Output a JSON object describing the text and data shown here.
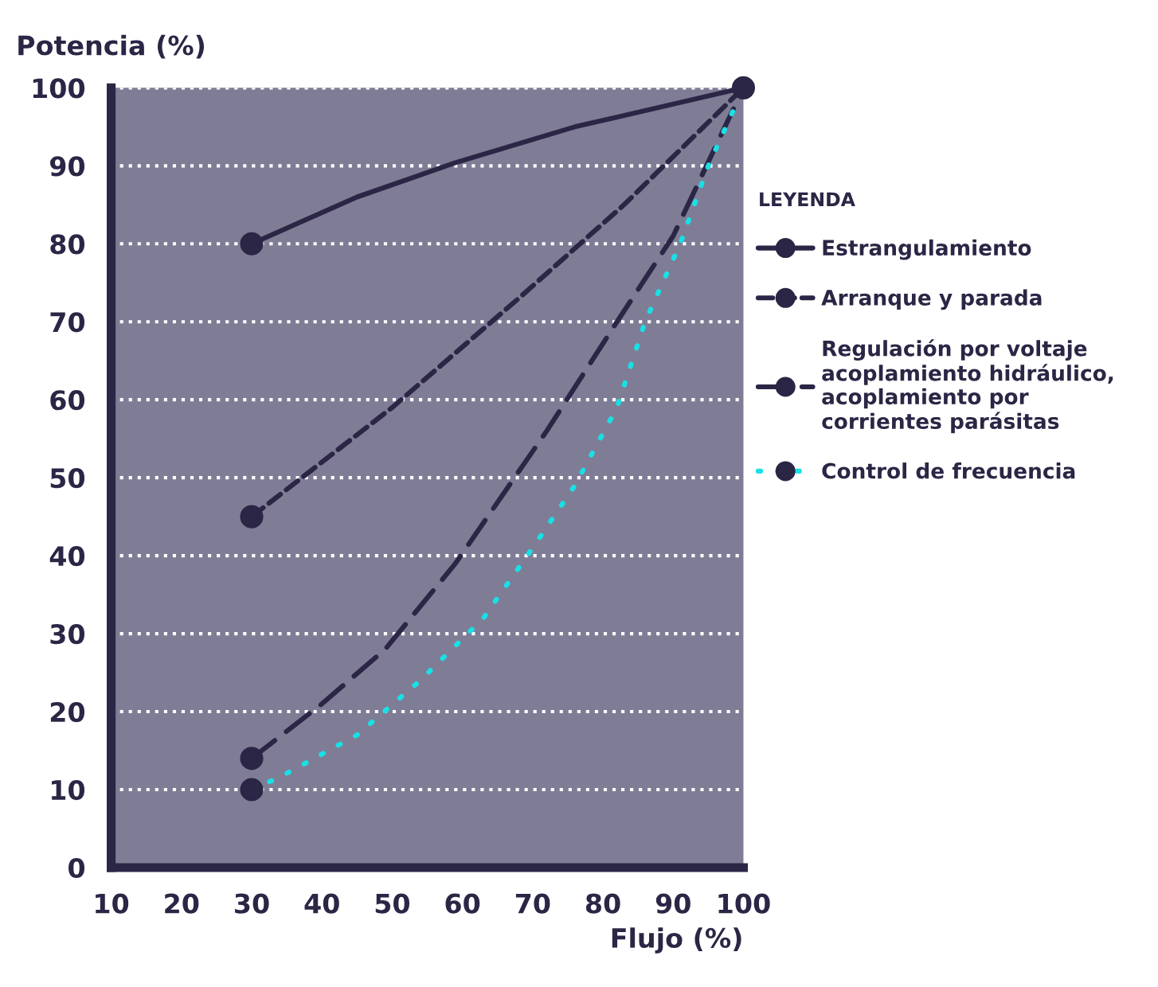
{
  "chart_data": {
    "type": "line",
    "xlabel": "Flujo (%)",
    "ylabel": "Potencia (%)",
    "legend_title": "LEYENDA",
    "xlim": [
      10,
      100
    ],
    "ylim": [
      0,
      100
    ],
    "xticks": [
      10,
      20,
      30,
      40,
      50,
      60,
      70,
      80,
      90,
      100
    ],
    "yticks": [
      0,
      10,
      20,
      30,
      40,
      50,
      60,
      70,
      80,
      90,
      100
    ],
    "grid": "y",
    "legend": "right",
    "series": [
      {
        "name": "Estrangulamiento",
        "color": "#2b2645",
        "line_style": "solid",
        "marker": "none",
        "x": [
          30,
          45,
          59,
          76,
          100
        ],
        "values": [
          80,
          86,
          90.4,
          95,
          100
        ]
      },
      {
        "name": "Arranque y parada",
        "color": "#2b2645",
        "line_style": "dashed",
        "marker": "none",
        "x": [
          30,
          50,
          68,
          83,
          100
        ],
        "values": [
          45,
          59,
          73,
          85,
          100
        ]
      },
      {
        "name": "Regulación por voltaje\nacoplamiento hidráulico,\nacoplamiento por\ncorrientes parásitas",
        "color": "#2b2645",
        "line_style": "dashed",
        "marker": "none",
        "x": [
          30,
          40,
          49,
          59,
          72,
          82,
          90,
          100
        ],
        "values": [
          14,
          21,
          28,
          39,
          56,
          70,
          81,
          100
        ]
      },
      {
        "name": "Control de frecuencia",
        "color": "#19e0e6",
        "line_style": "dotted",
        "marker": "none",
        "x": [
          30,
          34,
          45,
          54,
          63,
          70,
          76,
          82,
          86,
          91,
          95,
          100
        ],
        "values": [
          10,
          11.6,
          17,
          24,
          32,
          41,
          49,
          59,
          70,
          80,
          90,
          100
        ]
      },
      {
        "type": "scatter",
        "color": "#2b2645",
        "marker": "circle",
        "x": [
          30,
          30,
          30,
          30,
          100
        ],
        "values": [
          80,
          45,
          14,
          10,
          100
        ]
      }
    ]
  }
}
